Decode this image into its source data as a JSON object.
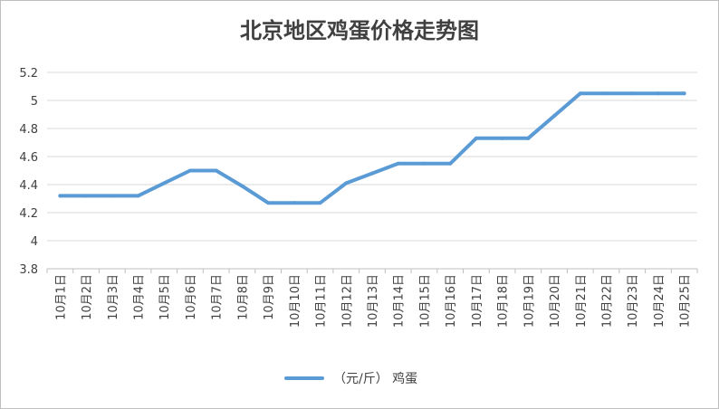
{
  "chart_data": {
    "type": "line",
    "title": "北京地区鸡蛋价格走势图",
    "categories": [
      "10月1日",
      "10月2日",
      "10月3日",
      "10月4日",
      "10月5日",
      "10月6日",
      "10月7日",
      "10月8日",
      "10月9日",
      "10月10日",
      "10月11日",
      "10月12日",
      "10月13日",
      "10月14日",
      "10月15日",
      "10月16日",
      "10月17日",
      "10月18日",
      "10月19日",
      "10月20日",
      "10月21日",
      "10月22日",
      "10月23日",
      "10月24日",
      "10月25日"
    ],
    "series": [
      {
        "name": "（元/斤） 鸡蛋",
        "color": "#5b9bd5",
        "values": [
          4.32,
          4.32,
          4.32,
          4.32,
          4.41,
          4.5,
          4.5,
          4.39,
          4.27,
          4.27,
          4.27,
          4.41,
          4.48,
          4.55,
          4.55,
          4.55,
          4.73,
          4.73,
          4.73,
          4.89,
          5.05,
          5.05,
          5.05,
          5.05,
          5.05
        ]
      }
    ],
    "yticks": [
      "3.8",
      "4",
      "4.2",
      "4.4",
      "4.6",
      "4.8",
      "5",
      "5.2"
    ],
    "ylim": [
      3.8,
      5.2
    ],
    "grid": true,
    "legend_position": "bottom"
  }
}
